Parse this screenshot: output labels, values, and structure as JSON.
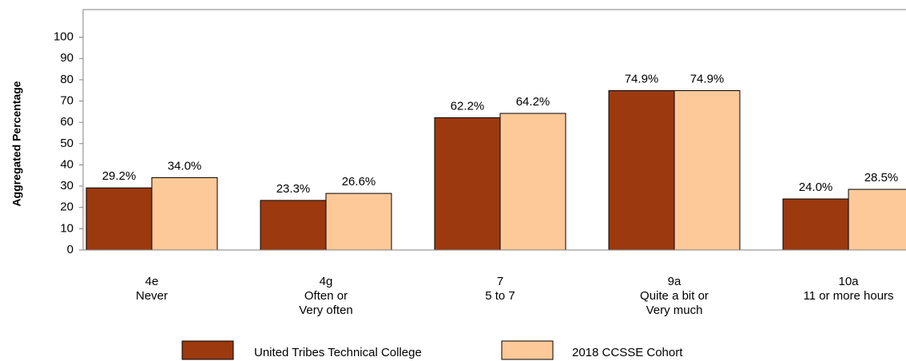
{
  "chart_data": {
    "type": "bar",
    "y_label": "Aggregated Percentage",
    "categories": [
      [
        "4e",
        "Never"
      ],
      [
        "4g",
        "Often or",
        "Very often"
      ],
      [
        "7",
        "5 to 7"
      ],
      [
        "9a",
        "Quite a bit or",
        "Very much"
      ],
      [
        "10a",
        "11 or more hours"
      ]
    ],
    "series": [
      {
        "name": "United Tribes Technical College",
        "color": "#9c390e",
        "values": [
          29.2,
          23.3,
          62.2,
          74.9,
          24.0
        ],
        "value_labels": [
          "29.2%",
          "23.3%",
          "62.2%",
          "74.9%",
          "24.0%"
        ]
      },
      {
        "name": "2018 CCSSE Cohort",
        "color": "#fdc998",
        "values": [
          34.0,
          26.6,
          64.2,
          74.9,
          28.5
        ],
        "value_labels": [
          "34.0%",
          "26.6%",
          "64.2%",
          "74.9%",
          "28.5%"
        ]
      }
    ],
    "ylim": [
      0,
      113
    ],
    "yticks": [
      0,
      10,
      20,
      30,
      40,
      50,
      60,
      70,
      80,
      90,
      100
    ]
  }
}
